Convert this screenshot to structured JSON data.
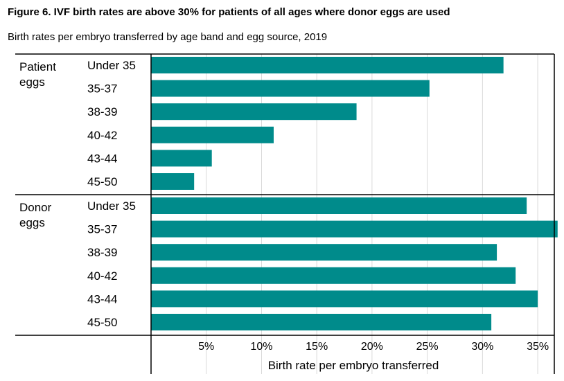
{
  "figure": {
    "title": "Figure 6. IVF birth rates are above 30% for patients of all ages where donor eggs are used",
    "subtitle": "Birth rates per embryo transferred by age band and egg source, 2019"
  },
  "colors": {
    "bar": "#008b8b",
    "grid": "#d9d9d9",
    "axis": "#000000"
  },
  "chart_data": {
    "type": "bar",
    "orientation": "horizontal",
    "xlabel": "Birth rate per embryo transferred",
    "xlim": [
      0,
      36.5
    ],
    "xticks": [
      5,
      10,
      15,
      20,
      25,
      30,
      35
    ],
    "xtick_labels": [
      "5%",
      "10%",
      "15%",
      "20%",
      "25%",
      "30%",
      "35%"
    ],
    "grid": true,
    "groups": [
      {
        "label_lines": [
          "Patient",
          "eggs"
        ],
        "categories": [
          "Under 35",
          "35-37",
          "38-39",
          "40-42",
          "43-44",
          "45-50"
        ],
        "values": [
          31.9,
          25.2,
          18.6,
          11.1,
          5.5,
          3.9
        ]
      },
      {
        "label_lines": [
          "Donor",
          "eggs"
        ],
        "categories": [
          "Under 35",
          "35-37",
          "38-39",
          "40-42",
          "43-44",
          "45-50"
        ],
        "values": [
          34.0,
          36.8,
          31.3,
          33.0,
          35.0,
          30.8
        ]
      }
    ]
  }
}
